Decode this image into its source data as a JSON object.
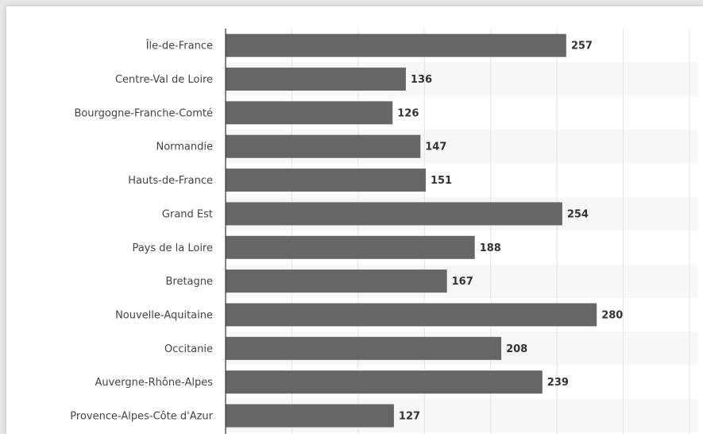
{
  "chart_data": {
    "type": "bar",
    "orientation": "horizontal",
    "categories": [
      "Île-de-France",
      "Centre-Val de Loire",
      "Bourgogne-Franche-Comté",
      "Normandie",
      "Hauts-de-France",
      "Grand Est",
      "Pays de la Loire",
      "Bretagne",
      "Nouvelle-Aquitaine",
      "Occitanie",
      "Auvergne-Rhône-Alpes",
      "Provence-Alpes-Côte d'Azur"
    ],
    "values": [
      257,
      136,
      126,
      147,
      151,
      254,
      188,
      167,
      280,
      208,
      239,
      127
    ],
    "xlim": [
      0,
      350
    ],
    "grid": true,
    "data_labels": true,
    "colors": {
      "bar": "#666666",
      "band": "#f7f7f7",
      "grid": "#e4e4e4",
      "axis": "#333333"
    }
  }
}
